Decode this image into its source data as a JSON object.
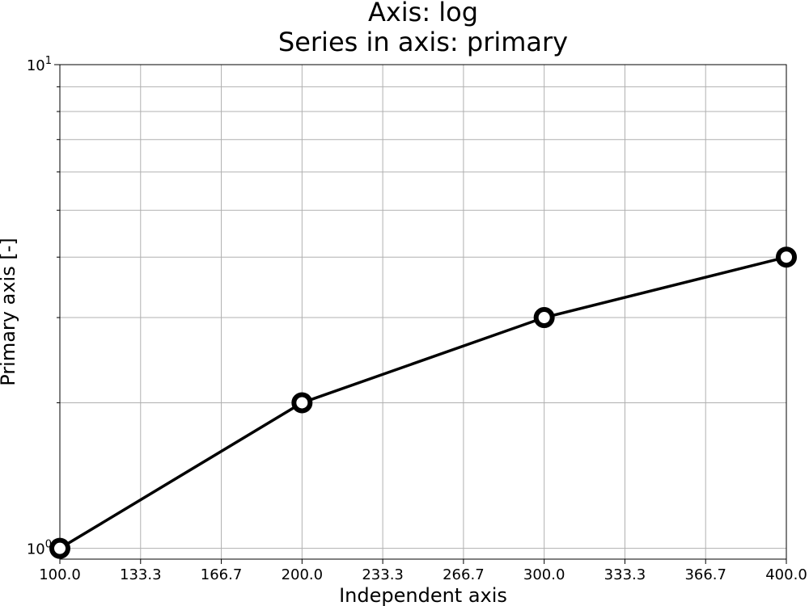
{
  "chart_data": {
    "type": "line",
    "title": "Axis: log",
    "subtitle": "Series in axis: primary",
    "xlabel": "Independent axis",
    "ylabel": "Primary axis [-]",
    "x_scale": "linear",
    "y_scale": "log",
    "xlim": [
      100,
      400
    ],
    "ylim": [
      0.95,
      10
    ],
    "grid": true,
    "x_ticks": [
      "100.0",
      "133.3",
      "166.7",
      "200.0",
      "233.3",
      "266.7",
      "300.0",
      "333.3",
      "366.7",
      "400.0"
    ],
    "y_major_ticks": [
      {
        "value": 1,
        "base": "10",
        "exp": "0"
      },
      {
        "value": 10,
        "base": "10",
        "exp": "1"
      }
    ],
    "y_minor_ticks": [
      2,
      3,
      4,
      5,
      6,
      7,
      8,
      9
    ],
    "series": [
      {
        "x": [
          100,
          200,
          300,
          400
        ],
        "values": [
          1,
          2,
          3,
          4
        ],
        "color": "#000000",
        "marker": "open-circle"
      }
    ]
  }
}
